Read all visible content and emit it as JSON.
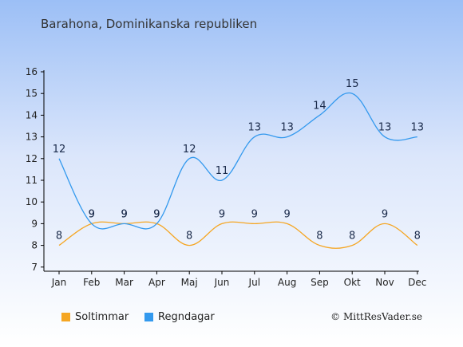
{
  "site_credit": "© MittResVader.se",
  "chart_data": {
    "type": "line",
    "title": "Barahona, Dominikanska republiken",
    "xlabel": "",
    "ylabel": "",
    "categories": [
      "Jan",
      "Feb",
      "Mar",
      "Apr",
      "Maj",
      "Jun",
      "Jul",
      "Aug",
      "Sep",
      "Okt",
      "Nov",
      "Dec"
    ],
    "ylim": [
      7,
      16
    ],
    "yticks": [
      7,
      8,
      9,
      10,
      11,
      12,
      13,
      14,
      15,
      16
    ],
    "grid": false,
    "legend_position": "bottom-left",
    "series": [
      {
        "name": "Soltimmar",
        "color": "#f5a623",
        "values": [
          8,
          9,
          9,
          9,
          8,
          9,
          9,
          9,
          8,
          8,
          9,
          8
        ]
      },
      {
        "name": "Regndagar",
        "color": "#3399ee",
        "values": [
          12,
          9,
          9,
          9,
          12,
          11,
          13,
          13,
          14,
          15,
          13,
          13
        ]
      }
    ]
  }
}
